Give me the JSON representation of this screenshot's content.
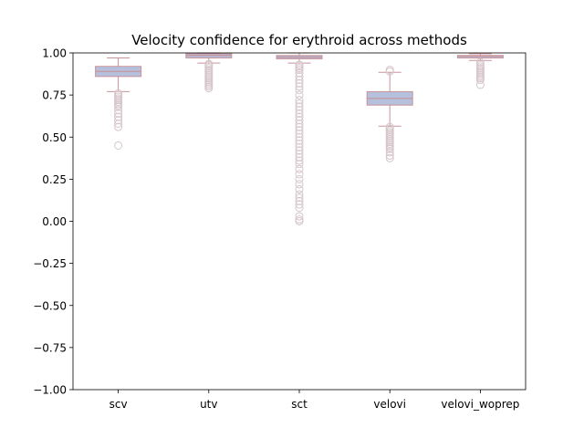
{
  "chart_data": {
    "type": "boxplot",
    "title": "Velocity confidence for erythroid across methods",
    "xlabel": "",
    "ylabel": "",
    "ylim": [
      -1.0,
      1.0
    ],
    "yticks": [
      1.0,
      0.75,
      0.5,
      0.25,
      0.0,
      -0.25,
      -0.5,
      -0.75,
      -1.0
    ],
    "ytick_labels": [
      "1.00",
      "0.75",
      "0.50",
      "0.25",
      "0.00",
      "−0.25",
      "−0.50",
      "−0.75",
      "−1.00"
    ],
    "grid": false,
    "categories": [
      "scv",
      "utv",
      "sct",
      "velovi",
      "velovi_woprep"
    ],
    "boxes": [
      {
        "label": "scv",
        "whisker_low": 0.77,
        "q1": 0.86,
        "median": 0.89,
        "q3": 0.92,
        "whisker_high": 0.97,
        "outliers": [
          0.76,
          0.75,
          0.74,
          0.73,
          0.72,
          0.71,
          0.7,
          0.69,
          0.68,
          0.66,
          0.64,
          0.62,
          0.6,
          0.58,
          0.56,
          0.45
        ]
      },
      {
        "label": "utv",
        "whisker_low": 0.94,
        "q1": 0.97,
        "median": 0.985,
        "q3": 0.995,
        "whisker_high": 1.0,
        "outliers": [
          0.935,
          0.93,
          0.92,
          0.91,
          0.9,
          0.89,
          0.88,
          0.87,
          0.86,
          0.85,
          0.84,
          0.83,
          0.82,
          0.81,
          0.8,
          0.79
        ]
      },
      {
        "label": "sct",
        "whisker_low": 0.94,
        "q1": 0.965,
        "median": 0.975,
        "q3": 0.985,
        "whisker_high": 1.0,
        "outliers": [
          0.93,
          0.92,
          0.91,
          0.9,
          0.88,
          0.86,
          0.84,
          0.82,
          0.8,
          0.78,
          0.75,
          0.72,
          0.7,
          0.68,
          0.66,
          0.64,
          0.62,
          0.6,
          0.58,
          0.56,
          0.54,
          0.52,
          0.5,
          0.48,
          0.46,
          0.44,
          0.42,
          0.4,
          0.38,
          0.36,
          0.34,
          0.31,
          0.28,
          0.25,
          0.22,
          0.19,
          0.16,
          0.14,
          0.12,
          0.1,
          0.08,
          0.03,
          0.01,
          0.0
        ]
      },
      {
        "label": "velovi",
        "whisker_low": 0.565,
        "q1": 0.69,
        "median": 0.73,
        "q3": 0.77,
        "whisker_high": 0.885,
        "outliers": [
          0.9,
          0.89,
          0.56,
          0.55,
          0.54,
          0.53,
          0.52,
          0.51,
          0.5,
          0.49,
          0.48,
          0.47,
          0.46,
          0.45,
          0.44,
          0.43,
          0.41,
          0.39,
          0.375
        ]
      },
      {
        "label": "velovi_woprep",
        "whisker_low": 0.955,
        "q1": 0.97,
        "median": 0.98,
        "q3": 0.985,
        "whisker_high": 0.995,
        "outliers": [
          0.945,
          0.93,
          0.92,
          0.91,
          0.9,
          0.89,
          0.88,
          0.87,
          0.86,
          0.85,
          0.84,
          0.81
        ]
      }
    ],
    "colors": {
      "box_fill": "#b5c0dd",
      "box_edge": "#c9939a",
      "median": "#c9939a",
      "whisker": "#c9939a",
      "outlier": "#d6c6cb",
      "axis": "#000000",
      "background": "#ffffff"
    }
  }
}
